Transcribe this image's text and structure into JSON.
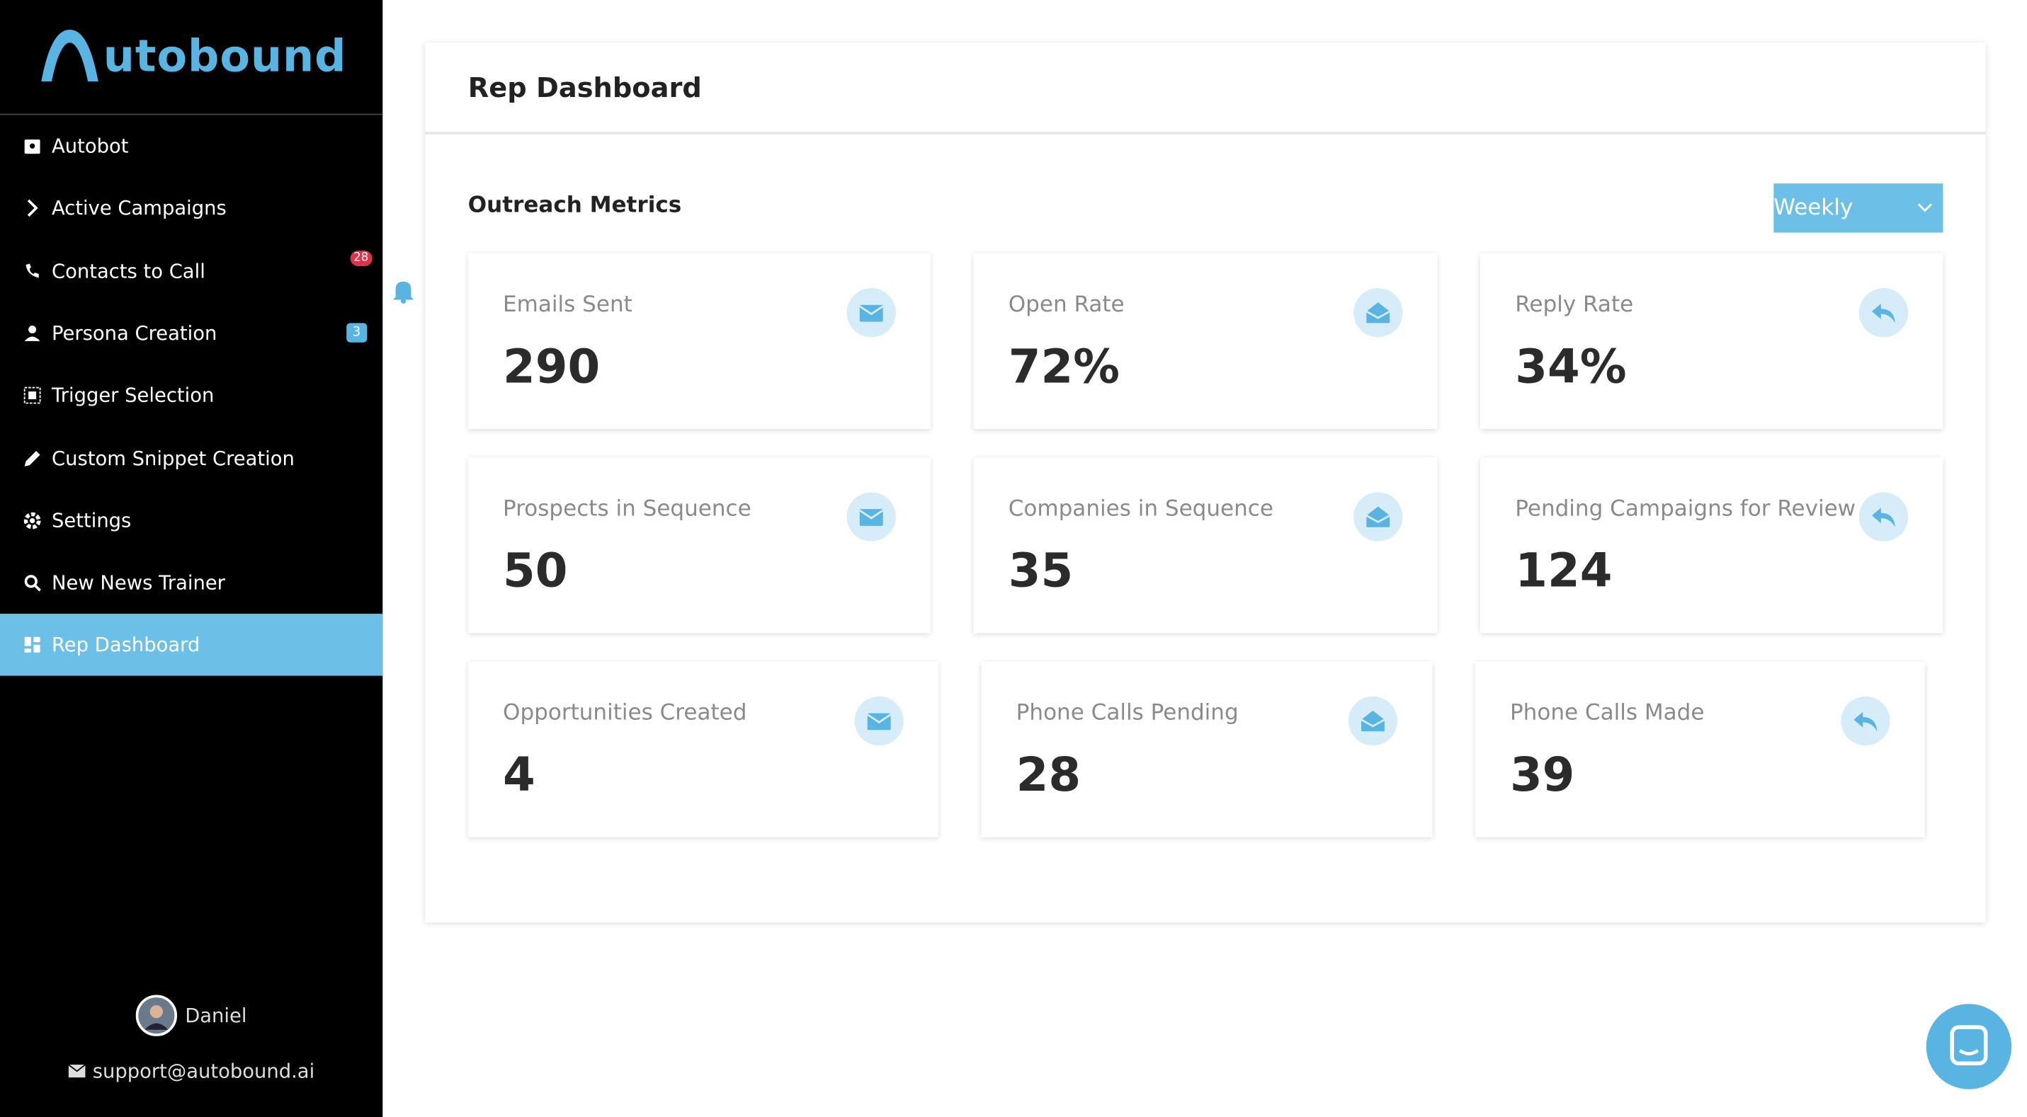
{
  "brand": {
    "text": "utobound"
  },
  "nav": [
    {
      "label": "Autobot"
    },
    {
      "label": "Active Campaigns"
    },
    {
      "label": "Contacts to Call",
      "badge": "28"
    },
    {
      "label": "Persona Creation",
      "badge": "3"
    },
    {
      "label": "Trigger Selection"
    },
    {
      "label": "Custom Snippet Creation"
    },
    {
      "label": "Settings"
    },
    {
      "label": "New News Trainer"
    },
    {
      "label": "Rep Dashboard",
      "active": true
    }
  ],
  "user": {
    "name": "Daniel",
    "email": "support@autobound.ai"
  },
  "header": {
    "title": "Rep Dashboard"
  },
  "section": {
    "title": "Outreach Metrics",
    "period": "Weekly"
  },
  "metrics": [
    [
      {
        "label": "Emails Sent",
        "value": "290",
        "icon": "mail"
      },
      {
        "label": "Open Rate",
        "value": "72%",
        "icon": "open"
      },
      {
        "label": "Reply Rate",
        "value": "34%",
        "icon": "reply"
      }
    ],
    [
      {
        "label": "Prospects in Sequence",
        "value": "50",
        "icon": "mail"
      },
      {
        "label": "Companies in Sequence",
        "value": "35",
        "icon": "open"
      },
      {
        "label": "Pending Campaigns for Review",
        "value": "124",
        "icon": "reply"
      }
    ],
    [
      {
        "label": "Opportunities Created",
        "value": "4",
        "icon": "mail"
      },
      {
        "label": "Phone Calls Pending",
        "value": "28",
        "icon": "open"
      },
      {
        "label": "Phone Calls Made",
        "value": "39",
        "icon": "reply"
      }
    ]
  ]
}
